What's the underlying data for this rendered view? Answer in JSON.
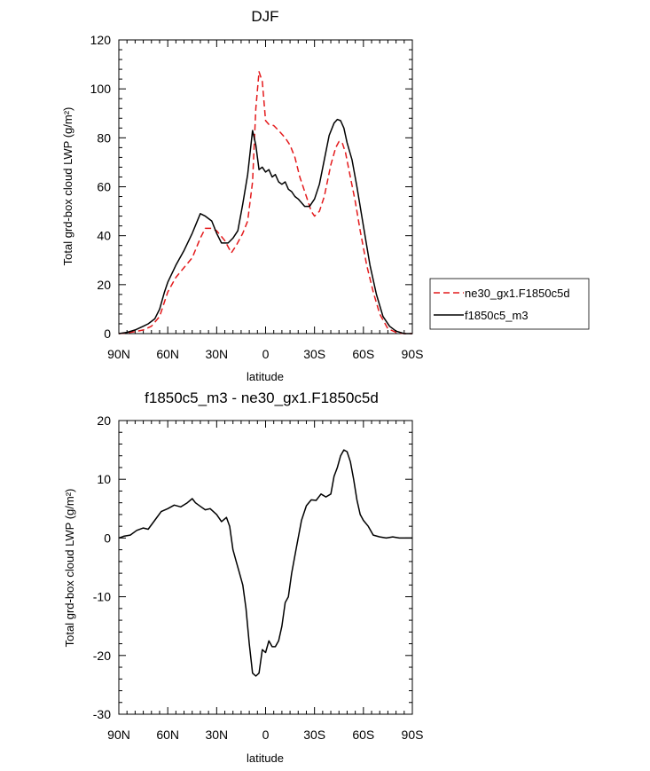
{
  "chart_data": [
    {
      "type": "line",
      "title": "DJF",
      "xlabel": "latitude",
      "ylabel": "Total grd-box cloud LWP (g/m²)",
      "xlim": [
        90,
        -90
      ],
      "ylim": [
        0,
        120
      ],
      "xticks": [
        90,
        60,
        30,
        0,
        -30,
        -60,
        -90
      ],
      "xtick_labels": [
        "90N",
        "60N",
        "30N",
        "0",
        "30S",
        "60S",
        "90S"
      ],
      "yticks": [
        0,
        20,
        40,
        60,
        80,
        100,
        120
      ],
      "ytick_labels": [
        "0",
        "20",
        "40",
        "60",
        "80",
        "100",
        "120"
      ],
      "grid": false,
      "legend": "outside-right",
      "series": [
        {
          "name": "ne30_gx1.F1850c5d",
          "color": "#e41a1c",
          "dash": "dashed",
          "x": [
            90,
            85,
            80,
            75,
            70,
            65,
            60,
            55,
            50,
            45,
            40,
            37,
            33,
            30,
            25,
            21,
            18,
            14,
            11,
            8,
            6,
            4,
            2,
            0,
            -2,
            -5,
            -8,
            -12,
            -15,
            -18,
            -21,
            -25,
            -28,
            -30,
            -33,
            -36,
            -40,
            -43,
            -45,
            -47,
            -49,
            -52,
            -55,
            -58,
            -62,
            -66,
            -70,
            -75,
            -80,
            -85,
            -90
          ],
          "y": [
            0,
            0.3,
            0.8,
            1.5,
            3,
            7,
            17,
            23,
            27,
            31,
            39,
            43,
            43,
            42,
            38,
            33,
            36,
            41,
            46,
            62,
            92,
            107,
            103,
            87,
            85.5,
            85,
            83,
            80,
            77,
            72,
            64,
            56,
            50,
            48,
            50,
            56,
            69,
            76,
            78.5,
            78,
            74,
            64,
            54,
            42,
            28,
            17,
            8,
            2,
            0.5,
            0,
            0
          ]
        },
        {
          "name": "f1850c5_m3",
          "color": "#000000",
          "dash": "solid",
          "x": [
            90,
            85,
            80,
            75,
            72,
            68,
            65,
            62,
            60,
            55,
            50,
            45,
            40,
            37,
            33,
            30,
            27,
            23,
            20,
            17,
            14,
            11,
            8,
            6,
            4,
            2,
            0,
            -2,
            -4,
            -6,
            -8,
            -10,
            -12,
            -14,
            -16,
            -18,
            -20,
            -24,
            -27,
            -30,
            -33,
            -36,
            -39,
            -42,
            -44,
            -46,
            -48,
            -50,
            -53,
            -56,
            -60,
            -64,
            -68,
            -72,
            -76,
            -80,
            -85,
            -90
          ],
          "y": [
            0,
            0.5,
            1.5,
            3,
            4,
            6,
            10,
            17,
            21,
            28,
            34,
            41,
            49,
            48,
            46,
            41,
            37,
            37,
            39,
            42,
            53,
            65,
            83,
            77,
            67,
            68,
            66,
            67,
            64,
            65,
            62,
            61,
            62,
            59,
            58,
            56,
            55,
            52,
            52,
            55,
            61,
            71,
            81,
            86,
            87.5,
            87,
            84,
            78,
            71,
            60,
            44,
            28,
            16,
            7,
            3,
            1,
            0,
            0
          ]
        }
      ]
    },
    {
      "type": "line",
      "title": "f1850c5_m3 - ne30_gx1.F1850c5d",
      "xlabel": "latitude",
      "ylabel": "Total grd-box cloud LWP (g/m²)",
      "xlim": [
        90,
        -90
      ],
      "ylim": [
        -30,
        20
      ],
      "xticks": [
        90,
        60,
        30,
        0,
        -30,
        -60,
        -90
      ],
      "xtick_labels": [
        "90N",
        "60N",
        "30N",
        "0",
        "30S",
        "60S",
        "90S"
      ],
      "yticks": [
        -30,
        -20,
        -10,
        0,
        10,
        20
      ],
      "ytick_labels": [
        "-30",
        "-20",
        "-10",
        "0",
        "10",
        "20"
      ],
      "grid": false,
      "series": [
        {
          "color": "#000000",
          "dash": "solid",
          "x": [
            90,
            87,
            83,
            79,
            75,
            72,
            68,
            64,
            60,
            56,
            52,
            48,
            45,
            43,
            40,
            37,
            34,
            30,
            27,
            24,
            22,
            20,
            18,
            16,
            14,
            12,
            10,
            8,
            6,
            4,
            2,
            0,
            -2,
            -4,
            -6,
            -8,
            -10,
            -12,
            -14,
            -16,
            -19,
            -22,
            -25,
            -28,
            -31,
            -34,
            -37,
            -40,
            -42,
            -44,
            -46,
            -48,
            -50,
            -52,
            -54,
            -56,
            -58,
            -60,
            -63,
            -66,
            -70,
            -74,
            -78,
            -82,
            -86,
            -90
          ],
          "y": [
            0,
            0.3,
            0.5,
            1.3,
            1.7,
            1.5,
            3,
            4.5,
            5,
            5.6,
            5.3,
            6,
            6.7,
            6,
            5.4,
            4.8,
            5,
            4,
            2.8,
            3.5,
            2,
            -2,
            -4,
            -6,
            -8,
            -12,
            -18,
            -23,
            -23.5,
            -23,
            -19,
            -19.5,
            -17.5,
            -18.5,
            -18.5,
            -17.5,
            -15,
            -11,
            -10,
            -6,
            -1.5,
            3,
            5.5,
            6.5,
            6.4,
            7.5,
            7,
            7.5,
            10.5,
            12,
            14,
            15,
            14.7,
            13,
            10,
            6.5,
            4,
            3,
            2,
            0.5,
            0.2,
            0,
            0.2,
            0,
            0,
            0
          ]
        }
      ]
    }
  ]
}
